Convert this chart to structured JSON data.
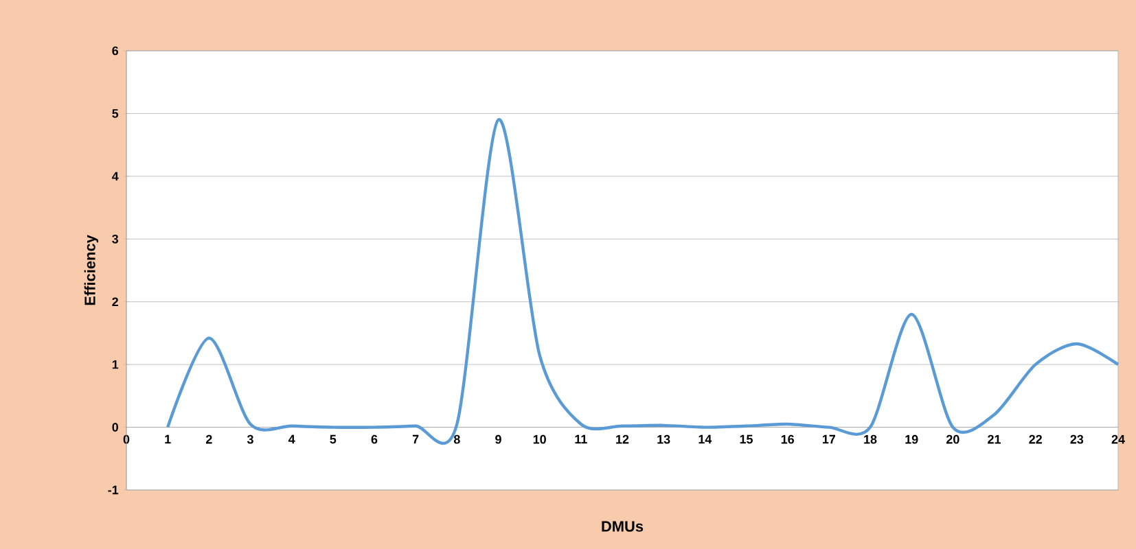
{
  "chart_data": {
    "type": "line",
    "xlabel": "DMUs",
    "ylabel": "Efficiency",
    "x": [
      1,
      2,
      3,
      4,
      5,
      6,
      7,
      8,
      9,
      10,
      11,
      12,
      13,
      14,
      15,
      16,
      17,
      18,
      19,
      20,
      21,
      22,
      23,
      24
    ],
    "series": [
      {
        "color": "#5b9bd5",
        "values": [
          0,
          1.42,
          0.05,
          0.02,
          0,
          0,
          0.02,
          0.05,
          4.9,
          1.15,
          0.05,
          0.02,
          0.03,
          0,
          0.02,
          0.05,
          0,
          0,
          1.8,
          0,
          0.2,
          1.0,
          1.33,
          1.0
        ]
      }
    ],
    "xlim": [
      0,
      24
    ],
    "ylim": [
      -1,
      6
    ],
    "xticks": [
      0,
      1,
      2,
      3,
      4,
      5,
      6,
      7,
      8,
      9,
      10,
      11,
      12,
      13,
      14,
      15,
      16,
      17,
      18,
      19,
      20,
      21,
      22,
      23,
      24
    ],
    "yticks": [
      -1,
      0,
      1,
      2,
      3,
      4,
      5,
      6
    ],
    "grid": "y",
    "marker": "none",
    "line_style": "solid"
  }
}
